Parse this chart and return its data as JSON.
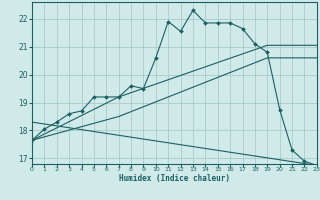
{
  "xlabel": "Humidex (Indice chaleur)",
  "bg_color": "#d0eaea",
  "grid_color": "#aacaca",
  "line_color": "#1a6060",
  "xlim": [
    0,
    23
  ],
  "ylim": [
    16.8,
    22.6
  ],
  "yticks": [
    17,
    18,
    19,
    20,
    21,
    22
  ],
  "xticks": [
    0,
    1,
    2,
    3,
    4,
    5,
    6,
    7,
    8,
    9,
    10,
    11,
    12,
    13,
    14,
    15,
    16,
    17,
    18,
    19,
    20,
    21,
    22,
    23
  ],
  "main_x": [
    0,
    1,
    2,
    3,
    4,
    5,
    6,
    7,
    8,
    9,
    10,
    11,
    12,
    13,
    14,
    15,
    16,
    17,
    18,
    19,
    20,
    21,
    22,
    23
  ],
  "main_y": [
    17.65,
    18.05,
    18.3,
    18.6,
    18.7,
    19.2,
    19.2,
    19.2,
    19.6,
    19.5,
    20.6,
    21.9,
    21.55,
    22.3,
    21.85,
    21.85,
    21.85,
    21.65,
    21.1,
    20.8,
    18.75,
    17.3,
    16.9,
    16.75
  ],
  "tline1_x": [
    0,
    7,
    19,
    23
  ],
  "tline1_y": [
    17.65,
    19.2,
    21.05,
    21.05
  ],
  "tline2_x": [
    0,
    7,
    19,
    23
  ],
  "tline2_y": [
    17.65,
    18.5,
    20.6,
    20.6
  ],
  "tline3_x": [
    0,
    23
  ],
  "tline3_y": [
    18.3,
    16.75
  ]
}
